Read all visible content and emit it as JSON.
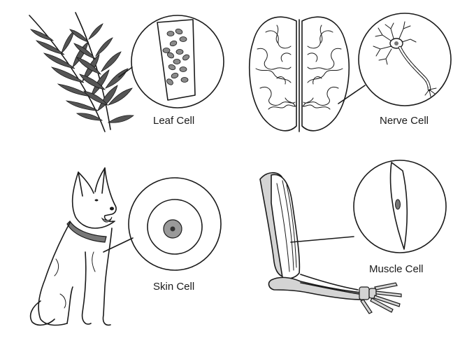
{
  "labels": {
    "leaf": "Leaf Cell",
    "nerve": "Nerve Cell",
    "skin": "Skin Cell",
    "muscle": "Muscle Cell"
  },
  "colors": {
    "ink": "#1a1a1a",
    "plant": "#555555",
    "organelle": "#8a8a8a",
    "nucleus": "#9a9a9a",
    "collar": "#777777",
    "bone": "#d4d4d4"
  },
  "icons": {
    "leaf": "rosemary-sprig-icon",
    "nerve": "brain-icon",
    "skin": "dog-icon",
    "muscle": "arm-icon"
  }
}
